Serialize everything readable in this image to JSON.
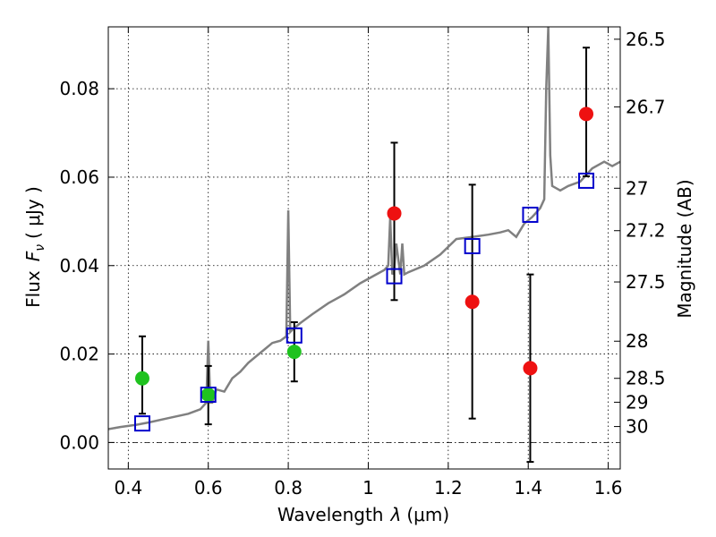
{
  "chart_data": {
    "type": "scatter",
    "xlabel": "Wavelength",
    "xlabel_symbol": "λ",
    "xlabel_unit": "(μm)",
    "ylabel": "Flux",
    "ylabel_symbol": "F",
    "ylabel_subscript": "ν",
    "ylabel_unit": "( μJy )",
    "y2label": "Magnitude (AB)",
    "xlim": [
      0.35,
      1.63
    ],
    "ylim": [
      -0.006,
      0.094
    ],
    "grid": true,
    "x_ticks": [
      0.4,
      0.6,
      0.8,
      1.0,
      1.2,
      1.4,
      1.6
    ],
    "x_tick_labels": [
      "0.4",
      "0.6",
      "0.8",
      "1",
      "1.2",
      "1.4",
      "1.6"
    ],
    "y_ticks": [
      0.0,
      0.02,
      0.04,
      0.06,
      0.08
    ],
    "y_tick_labels": [
      "0.00",
      "0.02",
      "0.04",
      "0.06",
      "0.08"
    ],
    "magnitude_ticks": [
      {
        "label": "26.5",
        "flux": 0.0912
      },
      {
        "label": "26.7",
        "flux": 0.0759
      },
      {
        "label": "27",
        "flux": 0.0575
      },
      {
        "label": "27.2",
        "flux": 0.0479
      },
      {
        "label": "27.5",
        "flux": 0.0363
      },
      {
        "label": "28",
        "flux": 0.0229
      },
      {
        "label": "28.5",
        "flux": 0.0145
      },
      {
        "label": "29",
        "flux": 0.0091
      },
      {
        "label": "30",
        "flux": 0.0036
      }
    ],
    "zero_line_y": 0.0,
    "colors": {
      "model": "#808080",
      "model_points": "#0000cc",
      "green_points": "#1fc21f",
      "red_points": "#ee1111",
      "errorbars": "#000000",
      "zero_line": "#000000"
    },
    "model_spectrum": {
      "x": [
        0.35,
        0.38,
        0.42,
        0.45,
        0.5,
        0.55,
        0.58,
        0.595,
        0.6,
        0.605,
        0.61,
        0.62,
        0.64,
        0.66,
        0.68,
        0.7,
        0.72,
        0.74,
        0.76,
        0.78,
        0.795,
        0.8,
        0.805,
        0.81,
        0.83,
        0.86,
        0.9,
        0.94,
        0.98,
        1.02,
        1.04,
        1.05,
        1.055,
        1.06,
        1.065,
        1.07,
        1.08,
        1.085,
        1.09,
        1.1,
        1.14,
        1.18,
        1.22,
        1.26,
        1.3,
        1.33,
        1.35,
        1.37,
        1.39,
        1.41,
        1.42,
        1.43,
        1.44,
        1.445,
        1.45,
        1.455,
        1.46,
        1.48,
        1.5,
        1.53,
        1.56,
        1.59,
        1.61,
        1.63
      ],
      "y": [
        0.003,
        0.0035,
        0.004,
        0.0045,
        0.0055,
        0.0065,
        0.0075,
        0.009,
        0.023,
        0.009,
        0.009,
        0.012,
        0.0115,
        0.0145,
        0.016,
        0.018,
        0.0195,
        0.021,
        0.0225,
        0.023,
        0.024,
        0.0525,
        0.025,
        0.0255,
        0.027,
        0.029,
        0.0315,
        0.0335,
        0.036,
        0.038,
        0.039,
        0.04,
        0.051,
        0.038,
        0.039,
        0.045,
        0.038,
        0.045,
        0.038,
        0.0385,
        0.04,
        0.0425,
        0.046,
        0.0465,
        0.047,
        0.0475,
        0.048,
        0.0465,
        0.0495,
        0.051,
        0.052,
        0.053,
        0.055,
        0.08,
        0.096,
        0.065,
        0.058,
        0.057,
        0.058,
        0.059,
        0.062,
        0.0635,
        0.0625,
        0.0635
      ]
    },
    "model_points": {
      "x": [
        0.435,
        0.6,
        0.815,
        1.065,
        1.26,
        1.405,
        1.545
      ],
      "y": [
        0.0043,
        0.0108,
        0.0242,
        0.0376,
        0.0444,
        0.0515,
        0.0592
      ]
    },
    "green_points": {
      "x": [
        0.435,
        0.6,
        0.815
      ],
      "y": [
        0.0145,
        0.0108,
        0.0205
      ],
      "yerr_low": [
        0.0065,
        0.0041,
        0.0138
      ],
      "yerr_high": [
        0.024,
        0.0173,
        0.0272
      ]
    },
    "red_points": {
      "x": [
        1.065,
        1.26,
        1.405,
        1.545
      ],
      "y": [
        0.0518,
        0.0318,
        0.0168,
        0.0743
      ],
      "yerr_low": [
        0.0322,
        0.0054,
        -0.0044,
        0.0602
      ],
      "yerr_high": [
        0.0678,
        0.0583,
        0.038,
        0.0893
      ]
    }
  }
}
